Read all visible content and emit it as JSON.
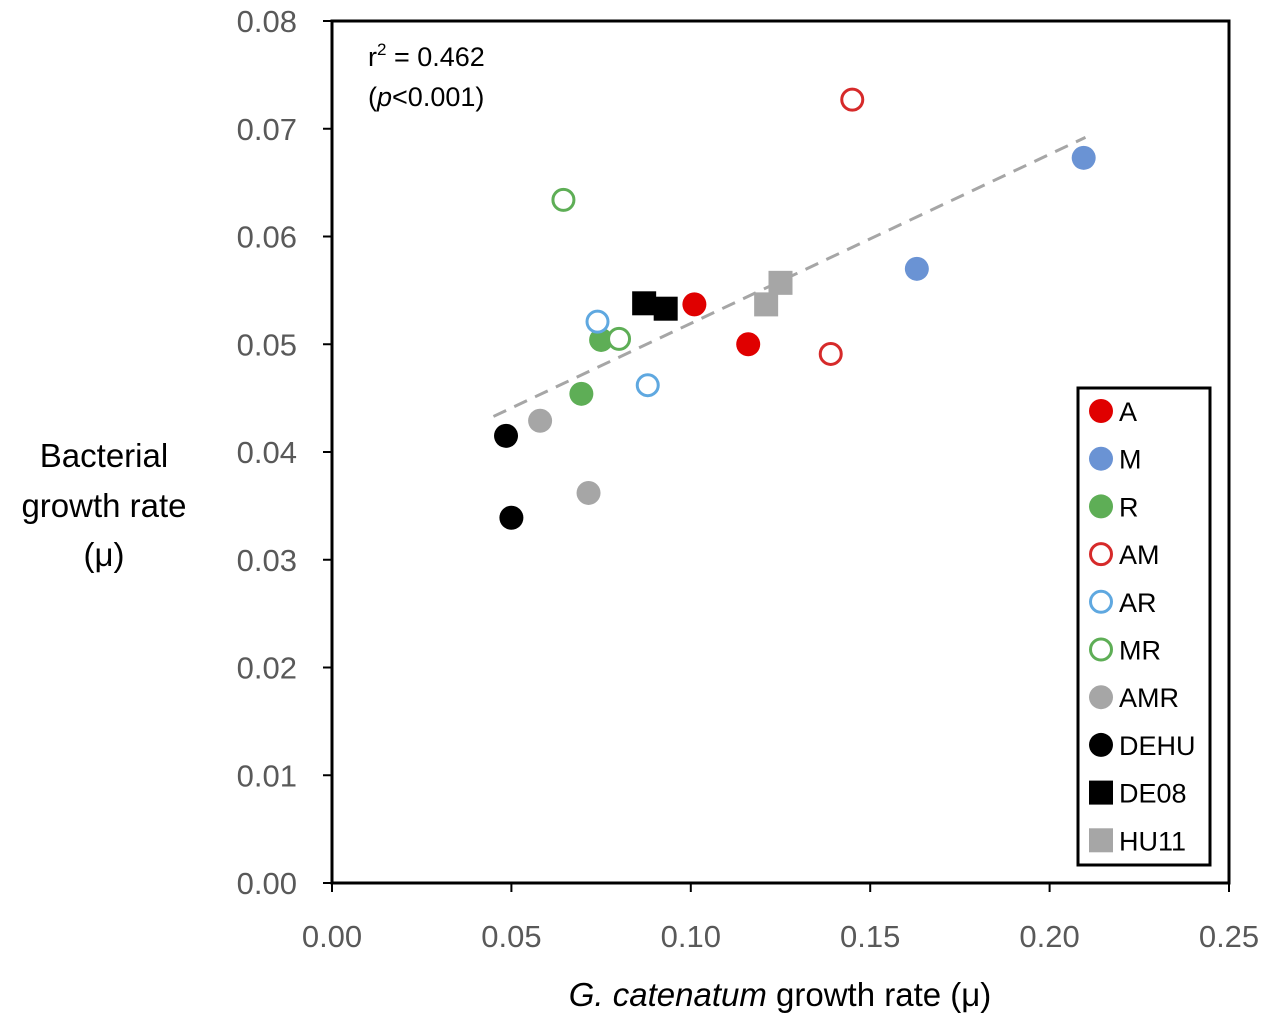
{
  "chart_data": {
    "type": "scatter",
    "title": "",
    "xlabel_italic": "G. catenatum",
    "xlabel_rest": " growth rate (μ)",
    "ylabel_lines": [
      "Bacterial",
      "growth rate",
      "(μ)"
    ],
    "xlim": [
      0,
      0.25
    ],
    "ylim": [
      0,
      0.08
    ],
    "x_ticks": [
      0,
      0.05,
      0.1,
      0.15,
      0.2,
      0.25
    ],
    "x_tick_labels": [
      "0.00",
      "0.05",
      "0.10",
      "0.15",
      "0.20",
      "0.25"
    ],
    "y_ticks": [
      0,
      0.01,
      0.02,
      0.03,
      0.04,
      0.05,
      0.06,
      0.07,
      0.08
    ],
    "y_tick_labels": [
      "0.00",
      "0.01",
      "0.02",
      "0.03",
      "0.04",
      "0.05",
      "0.06",
      "0.07",
      "0.08"
    ],
    "grid": false,
    "legend_position": "bottom-right",
    "annotation": {
      "r2_label": "r",
      "r2_sup": "2",
      "r2_value": " = 0.462",
      "p_open": "(",
      "p_italic": "p",
      "p_rest": "<0.001)"
    },
    "trendline": {
      "style": "dashed",
      "color": "#a6a6a6",
      "x": [
        0.045,
        0.21
      ],
      "y": [
        0.0433,
        0.0692
      ]
    },
    "series": [
      {
        "name": "A",
        "marker": "circle",
        "filled": true,
        "color": "#e00000",
        "points": [
          [
            0.101,
            0.0537
          ],
          [
            0.116,
            0.05
          ]
        ]
      },
      {
        "name": "M",
        "marker": "circle",
        "filled": true,
        "color": "#6a93d4",
        "points": [
          [
            0.163,
            0.057
          ],
          [
            0.2095,
            0.0673
          ]
        ]
      },
      {
        "name": "R",
        "marker": "circle",
        "filled": true,
        "color": "#5eae56",
        "points": [
          [
            0.075,
            0.0504
          ],
          [
            0.0695,
            0.0454
          ]
        ]
      },
      {
        "name": "AM",
        "marker": "circle",
        "filled": false,
        "color": "#d62a2a",
        "points": [
          [
            0.145,
            0.0727
          ],
          [
            0.139,
            0.0491
          ]
        ]
      },
      {
        "name": "AR",
        "marker": "circle",
        "filled": false,
        "color": "#5fa8e0",
        "points": [
          [
            0.074,
            0.0521
          ],
          [
            0.088,
            0.0462
          ]
        ]
      },
      {
        "name": "MR",
        "marker": "circle",
        "filled": false,
        "color": "#5eae56",
        "points": [
          [
            0.0645,
            0.0634
          ],
          [
            0.08,
            0.0505
          ]
        ]
      },
      {
        "name": "AMR",
        "marker": "circle",
        "filled": true,
        "color": "#a6a6a6",
        "points": [
          [
            0.058,
            0.0429
          ],
          [
            0.0715,
            0.0362
          ]
        ]
      },
      {
        "name": "DEHU",
        "marker": "circle",
        "filled": true,
        "color": "#000000",
        "points": [
          [
            0.0485,
            0.0415
          ],
          [
            0.05,
            0.0339
          ]
        ]
      },
      {
        "name": "DE08",
        "marker": "square",
        "filled": true,
        "color": "#000000",
        "points": [
          [
            0.087,
            0.0538
          ],
          [
            0.093,
            0.0533
          ]
        ]
      },
      {
        "name": "HU11",
        "marker": "square",
        "filled": true,
        "color": "#a6a6a6",
        "points": [
          [
            0.121,
            0.0537
          ],
          [
            0.125,
            0.0557
          ]
        ]
      }
    ]
  }
}
